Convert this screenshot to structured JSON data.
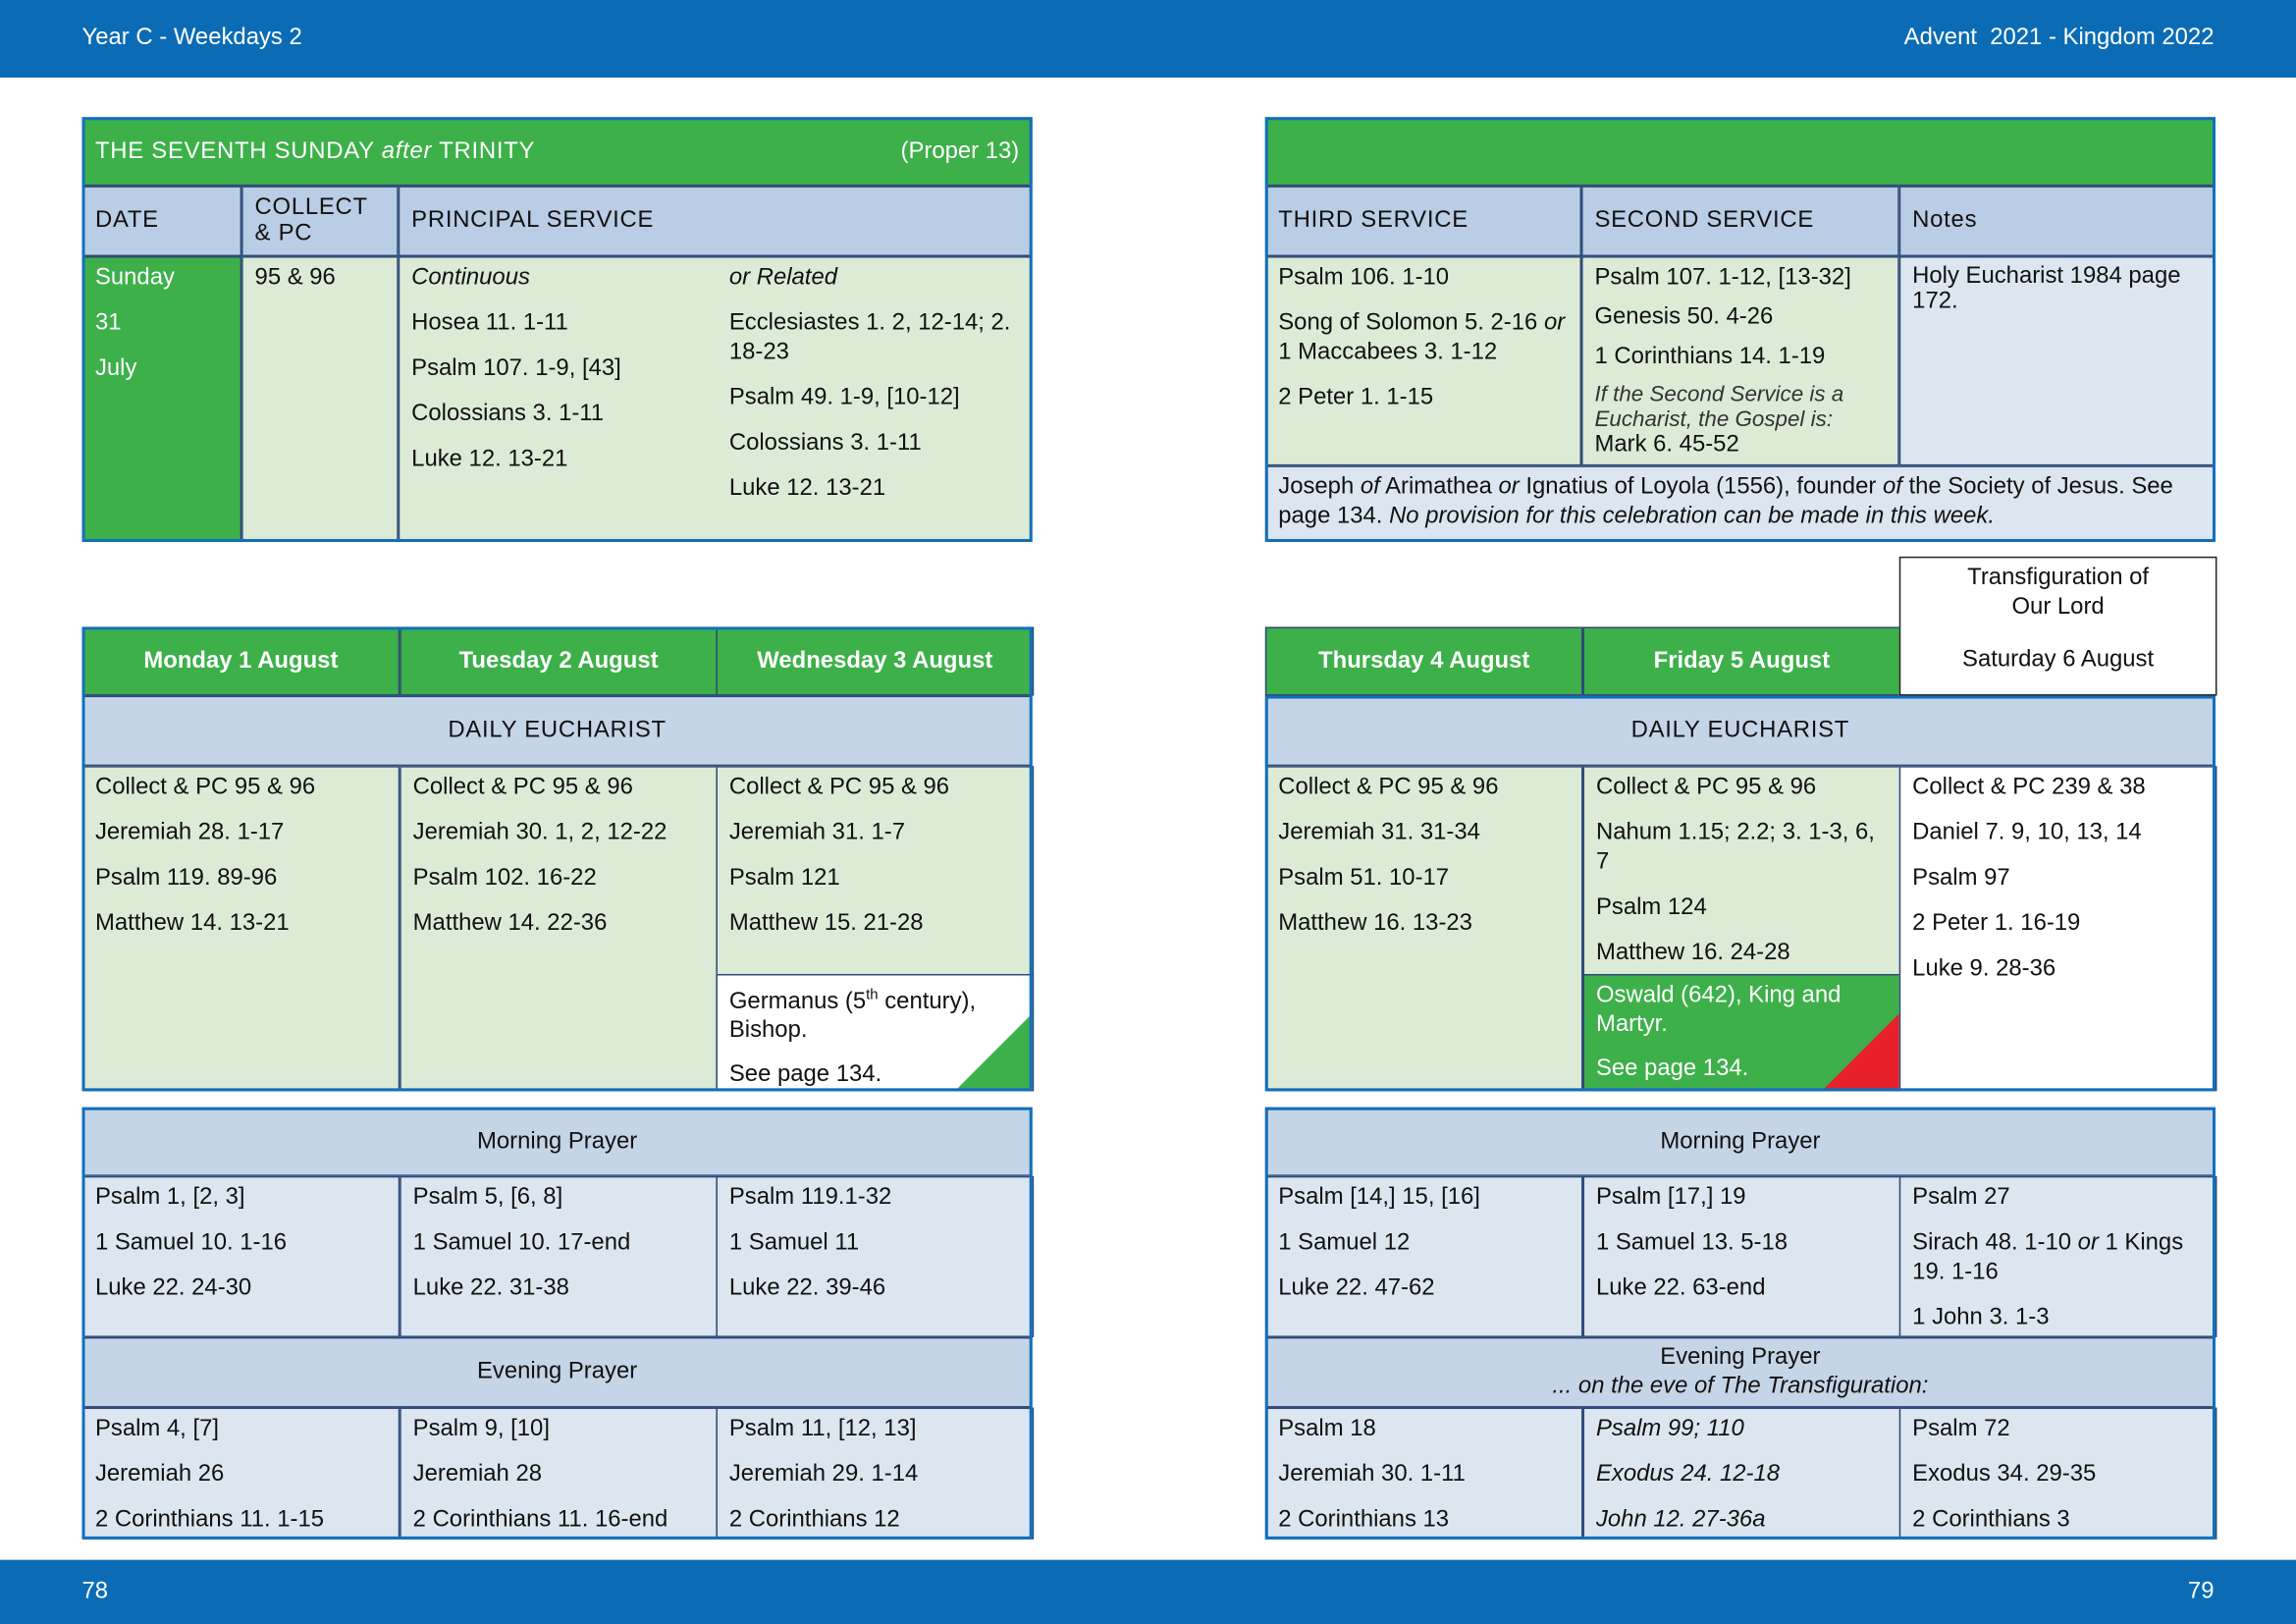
{
  "header": {
    "left": "Year C - Weekdays 2",
    "right": "Advent  2021 - Kingdom 2022"
  },
  "footer": {
    "left": "78",
    "right": "79"
  },
  "sunday": {
    "title": [
      {
        "text": "THE SEVENTH SUNDAY "
      },
      {
        "text": "after",
        "italic": true
      },
      {
        "text": " TRINITY"
      }
    ],
    "proper": "(Proper 13)",
    "headers": [
      "DATE",
      "COLLECT & PC",
      "PRINCIPAL SERVICE"
    ],
    "date": [
      "Sunday",
      "31",
      "July"
    ],
    "collect": "95 & 96",
    "continuous": {
      "label": "Continuous",
      "readings": [
        "Hosea 11. 1-11",
        "Psalm 107. 1-9, [43]",
        "Colossians 3. 1-11",
        "Luke 12. 13-21"
      ]
    },
    "related": {
      "label": "or Related",
      "readings": [
        "Ecclesiastes 1. 2, 12-14; 2. 18-23",
        "Psalm 49. 1-9, [10-12]",
        "Colossians 3. 1-11",
        "Luke 12. 13-21"
      ]
    },
    "other_headers": [
      "THIRD SERVICE",
      "SECOND SERVICE",
      "Notes"
    ],
    "third": [
      "Psalm 106. 1-10",
      [
        {
          "text": "Song of Solomon 5. 2-16 "
        },
        {
          "text": "or",
          "italic": true
        },
        {
          "text": " 1 Maccabees 3. 1-12"
        }
      ],
      "2 Peter 1. 1-15"
    ],
    "second": [
      "Psalm 107. 1-12, [13-32]",
      "Genesis 50. 4-26",
      "1 Corinthians 14. 1-19"
    ],
    "second_note": "If the Second Service is a Eucharist, the Gospel is:",
    "second_note_reading": "Mark 6. 45-52",
    "notes": "Holy Eucharist 1984 page 172.",
    "commemoration": [
      {
        "text": "Joseph "
      },
      {
        "text": "of",
        "italic": true
      },
      {
        "text": " Arimathea "
      },
      {
        "text": "or",
        "italic": true
      },
      {
        "text": " Ignatius of Loyola (1556), founder "
      },
      {
        "text": "of",
        "italic": true
      },
      {
        "text": " the Society of Jesus. See page 134. "
      },
      {
        "text": "No provision for this celebration can be made in this week.",
        "italic": true
      }
    ]
  },
  "week": {
    "eucharist_label": "DAILY EUCHARIST",
    "morning_label": "Morning Prayer",
    "evening_label": "Evening Prayer",
    "evening_note": "... on the eve of The Transfiguration:",
    "days": [
      {
        "name": "Monday 1 August",
        "color": "#3db04a",
        "eucharist": [
          "Collect & PC 95 & 96",
          "Jeremiah 28. 1-17",
          "Psalm 119. 89-96",
          "Matthew 14. 13-21"
        ],
        "morning": [
          "Psalm 1, [2, 3]",
          "1 Samuel 10. 1-16",
          "Luke 22. 24-30"
        ],
        "evening": [
          "Psalm 4, [7]",
          "Jeremiah 26",
          "2 Corinthians 11. 1-15"
        ]
      },
      {
        "name": "Tuesday 2 August",
        "color": "#3db04a",
        "eucharist": [
          "Collect & PC 95 & 96",
          "Jeremiah 30. 1, 2, 12-22",
          "Psalm 102. 16-22",
          "Matthew 14. 22-36"
        ],
        "morning": [
          "Psalm 5, [6, 8]",
          "1 Samuel 10. 17-end",
          "Luke 22. 31-38"
        ],
        "evening": [
          "Psalm 9, [10]",
          "Jeremiah 28",
          "2 Corinthians 11. 16-end"
        ]
      },
      {
        "name": "Wednesday 3 August",
        "color": "#3db04a",
        "eucharist": [
          "Collect & PC 95 & 96",
          "Jeremiah 31. 1-7",
          "Psalm 121",
          "Matthew 15. 21-28"
        ],
        "commemoration": [
          [
            {
              "text": "Germanus (5"
            },
            {
              "text": "th",
              "sup": true
            },
            {
              "text": " century), Bishop."
            }
          ],
          "See page 134."
        ],
        "commemoration_color": "#ffffff",
        "marker": "#3db04a",
        "morning": [
          "Psalm 119.1-32",
          "1 Samuel 11",
          "Luke 22. 39-46"
        ],
        "evening": [
          "Psalm 11, [12, 13]",
          "Jeremiah 29. 1-14",
          "2 Corinthians 12"
        ]
      },
      {
        "name": "Thursday 4 August",
        "color": "#3db04a",
        "eucharist": [
          "Collect & PC 95 & 96",
          "Jeremiah 31. 31-34",
          "Psalm 51. 10-17",
          "Matthew 16. 13-23"
        ],
        "morning": [
          "Psalm [14,] 15, [16]",
          "1 Samuel 12",
          "Luke 22. 47-62"
        ],
        "evening": [
          "Psalm 18",
          "Jeremiah 30. 1-11",
          "2 Corinthians 13"
        ]
      },
      {
        "name": "Friday 5 August",
        "color": "#3db04a",
        "eucharist": [
          "Collect & PC 95 & 96",
          "Nahum 1.15; 2.2; 3. 1-3, 6, 7",
          "Psalm 124",
          "Matthew 16. 24-28"
        ],
        "commemoration": [
          "Oswald (642), King and Martyr.",
          "See page 134."
        ],
        "commemoration_color": "#3db04a",
        "marker": "#e8202a",
        "morning": [
          "Psalm [17,] 19",
          "1 Samuel 13. 5-18",
          "Luke 22. 63-end"
        ],
        "evening": [
          {
            "text": "Psalm 99; 110",
            "italic": true
          },
          {
            "text": "Exodus 24. 12-18",
            "italic": true
          },
          {
            "text": "John 12. 27-36a",
            "italic": true
          }
        ]
      },
      {
        "name": "Saturday 6 August",
        "feast": "Transfiguration of Our Lord",
        "color": "#ffffff",
        "eucharist": [
          "Collect & PC 239 & 38",
          "Daniel 7. 9, 10, 13, 14",
          "Psalm 97",
          "2 Peter 1. 16-19",
          "Luke 9. 28-36"
        ],
        "morning": [
          "Psalm 27",
          [
            {
              "text": "Sirach 48. 1-10 "
            },
            {
              "text": "or",
              "italic": true
            },
            {
              "text": " 1 Kings 19. 1-16"
            }
          ],
          "1 John 3. 1-3"
        ],
        "evening": [
          "Psalm 72",
          "Exodus 34. 29-35",
          "2 Corinthians 3"
        ]
      }
    ]
  }
}
